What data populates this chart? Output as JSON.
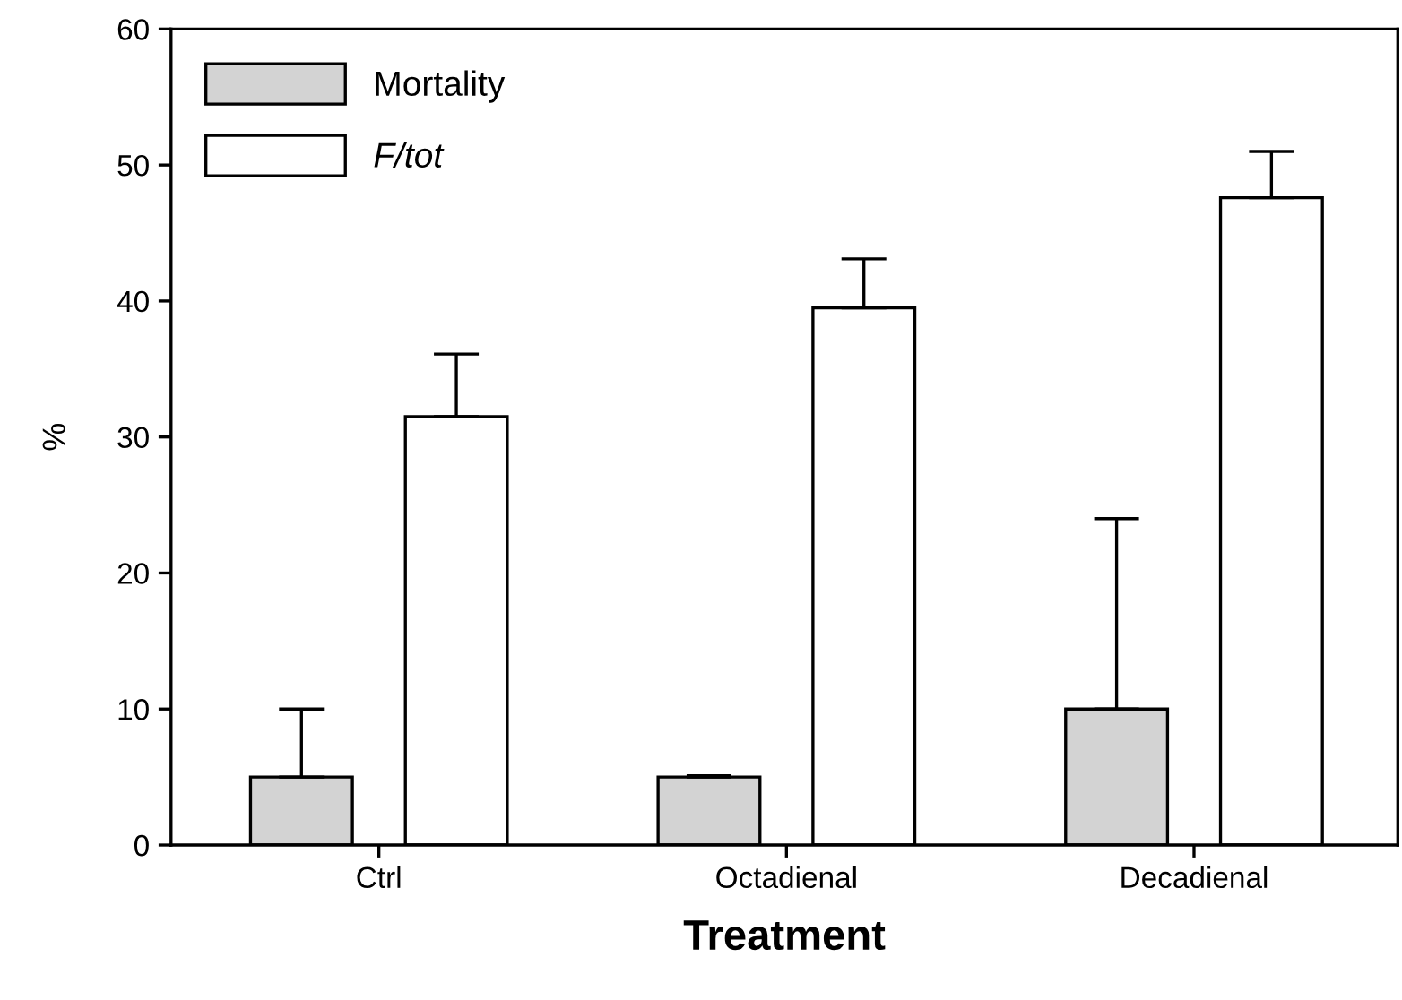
{
  "chart_data": {
    "type": "bar",
    "xlabel": "Treatment",
    "ylabel": "%",
    "categories": [
      "Ctrl",
      "Octadienal",
      "Decadienal"
    ],
    "series": [
      {
        "name": "Mortality",
        "color": "#d3d3d3",
        "values": [
          5,
          5,
          10
        ],
        "errors": [
          [
            5,
            10
          ],
          [
            5,
            5.1
          ],
          [
            10,
            24
          ]
        ]
      },
      {
        "name": "F/tot",
        "color": "#ffffff",
        "values": [
          31.5,
          39.5,
          47.6
        ],
        "errors": [
          [
            31.5,
            36.1
          ],
          [
            39.5,
            43.1
          ],
          [
            47.6,
            51
          ]
        ]
      }
    ],
    "ylim": [
      0,
      60
    ],
    "yticks": [
      0,
      10,
      20,
      30,
      40,
      50,
      60
    ],
    "grid": false,
    "legend": "top left"
  }
}
